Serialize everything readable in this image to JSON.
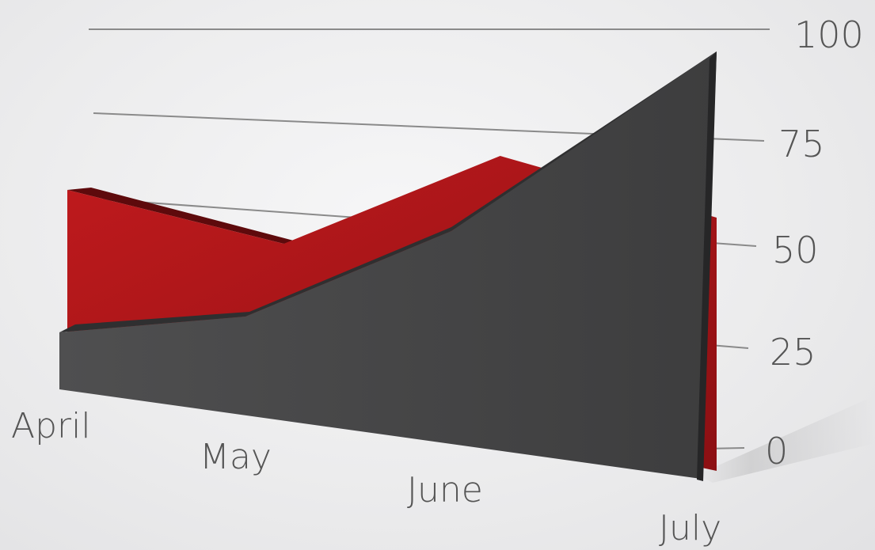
{
  "chart_data": {
    "type": "area",
    "style": "3d-perspective",
    "categories": [
      "April",
      "May",
      "June",
      "July"
    ],
    "series": [
      {
        "values": [
          62,
          45,
          72,
          52
        ],
        "color": "#b5161a"
      },
      {
        "values": [
          30,
          32,
          55,
          100
        ],
        "color": "#4a4a4a"
      }
    ],
    "ylim": [
      0,
      100
    ],
    "yticks": [
      "0",
      "25",
      "50",
      "75",
      "100"
    ],
    "grid": true,
    "legend": "none"
  }
}
